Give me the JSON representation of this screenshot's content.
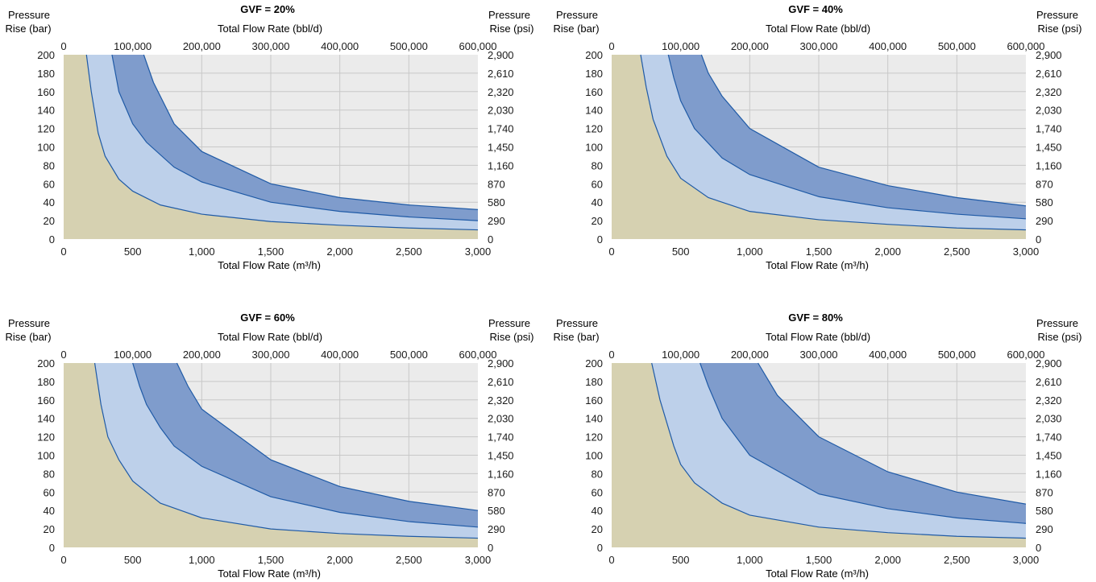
{
  "colors": {
    "zone_base": "#d6d1b1",
    "zone_plot": "#ebebeb",
    "zone_light": "#bdd0ea",
    "zone_dark": "#7f9ccc",
    "curve": "#1f5aa6",
    "grid": "#c8c8c8"
  },
  "chart_data": [
    {
      "type": "area",
      "title": "GVF = 20%",
      "xlabel": "Total Flow Rate (m³/h)",
      "x2label": "Total Flow Rate (bbl/d)",
      "ylabel_line1": "Pressure",
      "ylabel_line2": "Rise (bar)",
      "y2label_line1": "Pressure",
      "y2label_line2": "Rise (psi)",
      "xlim": [
        0,
        3000
      ],
      "ylim": [
        0,
        200
      ],
      "x2lim": [
        0,
        600000
      ],
      "x_ticks": [
        "0",
        "500",
        "1,000",
        "1,500",
        "2,000",
        "2,500",
        "3,000"
      ],
      "x2_ticks": [
        "0",
        "100,000",
        "200,000",
        "300,000",
        "400,000",
        "500,000",
        "600,000"
      ],
      "y_ticks": [
        "0",
        "20",
        "40",
        "60",
        "80",
        "100",
        "120",
        "140",
        "160",
        "180",
        "200"
      ],
      "y2_ticks": [
        "0",
        "290",
        "580",
        "870",
        "1,160",
        "1,450",
        "1,740",
        "2,030",
        "2,320",
        "2,610",
        "2,900"
      ],
      "series": [
        {
          "x": [
            165,
            200,
            250,
            300,
            400,
            500,
            700,
            1000,
            1500,
            2000,
            2500,
            3000
          ],
          "y": [
            200,
            160,
            115,
            90,
            65,
            52,
            37,
            27,
            19,
            15,
            12,
            10
          ]
        },
        {
          "x": [
            350,
            400,
            500,
            600,
            800,
            1000,
            1500,
            2000,
            2500,
            3000
          ],
          "y": [
            200,
            160,
            125,
            105,
            78,
            62,
            40,
            30,
            24,
            20
          ]
        },
        {
          "x": [
            580,
            650,
            800,
            1000,
            1500,
            2000,
            2500,
            3000
          ],
          "y": [
            200,
            170,
            125,
            95,
            60,
            45,
            37,
            32
          ]
        }
      ]
    },
    {
      "type": "area",
      "title": "GVF = 40%",
      "xlabel": "Total Flow Rate (m³/h)",
      "x2label": "Total Flow Rate (bbl/d)",
      "ylabel_line1": "Pressure",
      "ylabel_line2": "Rise (bar)",
      "y2label_line1": "Pressure",
      "y2label_line2": "Rise (psi)",
      "xlim": [
        0,
        3000
      ],
      "ylim": [
        0,
        200
      ],
      "x2lim": [
        0,
        600000
      ],
      "x_ticks": [
        "0",
        "500",
        "1,000",
        "1,500",
        "2,000",
        "2,500",
        "3,000"
      ],
      "x2_ticks": [
        "0",
        "100,000",
        "200,000",
        "300,000",
        "400,000",
        "500,000",
        "600,000"
      ],
      "y_ticks": [
        "0",
        "20",
        "40",
        "60",
        "80",
        "100",
        "120",
        "140",
        "160",
        "180",
        "200"
      ],
      "y2_ticks": [
        "0",
        "290",
        "580",
        "870",
        "1,160",
        "1,450",
        "1,740",
        "2,030",
        "2,320",
        "2,610",
        "2,900"
      ],
      "series": [
        {
          "x": [
            210,
            250,
            300,
            400,
            500,
            700,
            1000,
            1500,
            2000,
            2500,
            3000
          ],
          "y": [
            200,
            165,
            130,
            90,
            66,
            45,
            30,
            21,
            16,
            12,
            10
          ]
        },
        {
          "x": [
            410,
            450,
            500,
            600,
            800,
            1000,
            1500,
            2000,
            2500,
            3000
          ],
          "y": [
            200,
            175,
            150,
            120,
            88,
            70,
            46,
            34,
            27,
            22
          ]
        },
        {
          "x": [
            650,
            700,
            800,
            1000,
            1500,
            2000,
            2500,
            3000
          ],
          "y": [
            200,
            180,
            155,
            120,
            78,
            58,
            45,
            36
          ]
        }
      ]
    },
    {
      "type": "area",
      "title": "GVF = 60%",
      "xlabel": "Total Flow Rate (m³/h)",
      "x2label": "Total Flow Rate (bbl/d)",
      "ylabel_line1": "Pressure",
      "ylabel_line2": "Rise (bar)",
      "y2label_line1": "Pressure",
      "y2label_line2": "Rise (psi)",
      "xlim": [
        0,
        3000
      ],
      "ylim": [
        0,
        200
      ],
      "x2lim": [
        0,
        600000
      ],
      "x_ticks": [
        "0",
        "500",
        "1,000",
        "1,500",
        "2,000",
        "2,500",
        "3,000"
      ],
      "x2_ticks": [
        "0",
        "100,000",
        "200,000",
        "300,000",
        "400,000",
        "500,000",
        "600,000"
      ],
      "y_ticks": [
        "0",
        "20",
        "40",
        "60",
        "80",
        "100",
        "120",
        "140",
        "160",
        "180",
        "200"
      ],
      "y2_ticks": [
        "0",
        "290",
        "580",
        "870",
        "1,160",
        "1,450",
        "1,740",
        "2,030",
        "2,320",
        "2,610",
        "2,900"
      ],
      "series": [
        {
          "x": [
            225,
            270,
            320,
            400,
            500,
            700,
            1000,
            1500,
            2000,
            2500,
            3000
          ],
          "y": [
            200,
            155,
            120,
            95,
            72,
            48,
            32,
            20,
            15,
            12,
            10
          ]
        },
        {
          "x": [
            500,
            550,
            600,
            700,
            800,
            1000,
            1500,
            2000,
            2500,
            3000
          ],
          "y": [
            200,
            175,
            155,
            130,
            110,
            88,
            55,
            38,
            28,
            22
          ]
        },
        {
          "x": [
            820,
            900,
            1000,
            1500,
            2000,
            2500,
            3000
          ],
          "y": [
            200,
            175,
            150,
            95,
            66,
            50,
            40
          ]
        }
      ]
    },
    {
      "type": "area",
      "title": "GVF = 80%",
      "xlabel": "Total Flow Rate (m³/h)",
      "x2label": "Total Flow Rate (bbl/d)",
      "ylabel_line1": "Pressure",
      "ylabel_line2": "Rise (bar)",
      "y2label_line1": "Pressure",
      "y2label_line2": "Rise (psi)",
      "xlim": [
        0,
        3000
      ],
      "ylim": [
        0,
        200
      ],
      "x2lim": [
        0,
        600000
      ],
      "x_ticks": [
        "0",
        "500",
        "1,000",
        "1,500",
        "2,000",
        "2,500",
        "3,000"
      ],
      "x2_ticks": [
        "0",
        "100,000",
        "200,000",
        "300,000",
        "400,000",
        "500,000",
        "600,000"
      ],
      "y_ticks": [
        "0",
        "20",
        "40",
        "60",
        "80",
        "100",
        "120",
        "140",
        "160",
        "180",
        "200"
      ],
      "y2_ticks": [
        "0",
        "290",
        "580",
        "870",
        "1,160",
        "1,450",
        "1,740",
        "2,030",
        "2,320",
        "2,610",
        "2,900"
      ],
      "series": [
        {
          "x": [
            290,
            350,
            450,
            500,
            600,
            800,
            1000,
            1500,
            2000,
            2500,
            3000
          ],
          "y": [
            200,
            160,
            110,
            90,
            70,
            48,
            35,
            22,
            16,
            12,
            10
          ]
        },
        {
          "x": [
            640,
            700,
            800,
            1000,
            1500,
            2000,
            2500,
            3000
          ],
          "y": [
            200,
            175,
            140,
            100,
            58,
            42,
            32,
            26
          ]
        },
        {
          "x": [
            1060,
            1200,
            1500,
            2000,
            2500,
            3000
          ],
          "y": [
            200,
            165,
            120,
            82,
            60,
            47
          ]
        }
      ]
    }
  ]
}
